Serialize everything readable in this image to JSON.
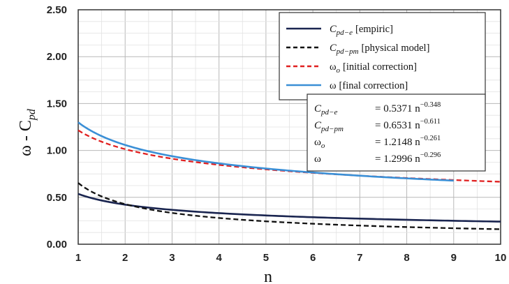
{
  "chart_data": {
    "type": "line",
    "xlabel": "n",
    "ylabel": "ω - C",
    "ylabel_sub": "pd",
    "xlim": [
      1,
      10
    ],
    "ylim": [
      0,
      2.5
    ],
    "xticks": [
      "1",
      "2",
      "3",
      "4",
      "5",
      "6",
      "7",
      "8",
      "9",
      "10"
    ],
    "yticks": [
      "0.00",
      "0.50",
      "1.00",
      "1.50",
      "2.00",
      "2.50"
    ],
    "grid": true,
    "legend_position": "top-right",
    "series": [
      {
        "name": "C",
        "sub": "pd−e",
        "tag": "[empiric]",
        "style": "solid",
        "color": "#1a2550",
        "coef": 0.5371,
        "exp": -0.348,
        "x_range": [
          1,
          10
        ],
        "x": [
          1,
          2,
          3,
          4,
          5,
          6,
          7,
          8,
          9,
          10
        ],
        "y": [
          0.537,
          0.422,
          0.368,
          0.332,
          0.307,
          0.287,
          0.272,
          0.26,
          0.249,
          0.24
        ]
      },
      {
        "name": "C",
        "sub": "pd−pm",
        "tag": "[physical model]",
        "style": "dashed",
        "color": "#111111",
        "coef": 0.6531,
        "exp": -0.611,
        "x_range": [
          1,
          10
        ],
        "x": [
          1,
          2,
          3,
          4,
          5,
          6,
          7,
          8,
          9,
          10
        ],
        "y": [
          0.653,
          0.427,
          0.333,
          0.28,
          0.244,
          0.219,
          0.199,
          0.183,
          0.171,
          0.16
        ]
      },
      {
        "name": "ω",
        "sub": "o",
        "tag": "[initial correction]",
        "style": "dashed",
        "color": "#e02020",
        "coef": 1.2148,
        "exp": -0.261,
        "x_range": [
          1,
          10
        ],
        "x": [
          1,
          2,
          3,
          4,
          5,
          6,
          7,
          8,
          9,
          10
        ],
        "y": [
          1.215,
          1.015,
          0.913,
          0.848,
          0.8,
          0.763,
          0.732,
          0.708,
          0.686,
          0.668
        ]
      },
      {
        "name": "ω",
        "sub": "",
        "tag": "[final correction]",
        "style": "solid",
        "color": "#3a8fd6",
        "coef": 1.2996,
        "exp": -0.296,
        "x_range": [
          1,
          9
        ],
        "x": [
          1,
          2,
          3,
          4,
          5,
          6,
          7,
          8,
          9
        ],
        "y": [
          1.3,
          1.057,
          0.936,
          0.859,
          0.804,
          0.762,
          0.727,
          0.699,
          0.675
        ]
      }
    ],
    "equations": [
      {
        "lhs": "C",
        "sub": "pd−e",
        "rhs": "= 0.5371 n",
        "exp": "−0.348"
      },
      {
        "lhs": "C",
        "sub": "pd−pm",
        "rhs": "= 0.6531 n",
        "exp": "−0.611"
      },
      {
        "lhs": "ω",
        "sub": "o",
        "rhs": "= 1.2148 n",
        "exp": "−0.261"
      },
      {
        "lhs": "ω",
        "sub": "",
        "rhs": "= 1.2996 n",
        "exp": "−0.296"
      }
    ]
  }
}
